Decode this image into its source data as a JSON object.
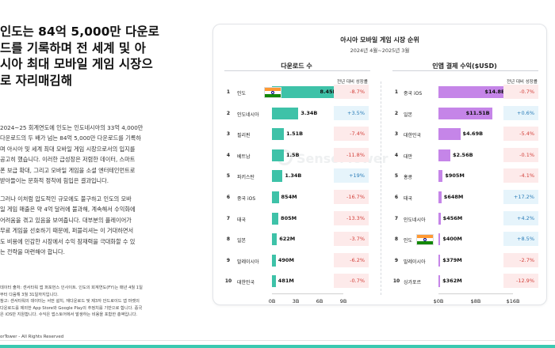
{
  "article": {
    "headline": [
      "인도는 84억 5,000만 다운로",
      "드를 기록하며 전 세계 및 아",
      "시아 최대 모바일 게임 시장으",
      "로 자리매김해"
    ],
    "para1": [
      "2024~25 회계연도에 인도는 인도네시아의 33억 4,000만",
      "다운로드의 두 배가 넘는 84억 5,000만 다운로드를 기록하",
      "며 아시아 및 세계 최대 모바일 게임 시장으로서의 입지를",
      "공고히 했습니다. 이러한 급성장은 저렴한 데이터, 스마트",
      "폰 보급 확대, 그리고 모바일 게임을 소셜 엔터테인먼트로",
      "받아들이는 문화적 정착에 힘입은 결과입니다."
    ],
    "para2": [
      "그러나 이처럼 압도적인 규모에도 불구하고 인도의 모바",
      "일 게임 매출은 약 4억 달러에 불과해, 계속해서 수익화에",
      "어려움을 겪고 있음을 보여줍니다. 대부분의 플레이어가",
      "무료 게임을 선호하기 때문에, 퍼블리셔는 이 거대하면서",
      "도 비용에 민감한 시장에서 수익 잠재력을 극대화할 수 있",
      "는 전략을 마련해야 합니다."
    ],
    "sources": [
      "데이터 출처: 센서타워 앱 퍼포먼스 인사이트. 인도의 회계연도(FY)는 매년 4월 1일",
      "부터 다음해 3월 31일까지입니다.",
      "참고: 센서타워의 데이터는 서먼 설치, 재다운로드 및 제3자 안드로이드 앱 마켓의",
      "다운로드를 제외한 App Store와 Google Play의 추정치를 기반으로 합니다. 중국",
      "은 iOS만 지원합니다. 수익은 앱스토어에서 발생하는 비용을 포함한 총액입니다."
    ],
    "copyright": "orTower - All Rights Reserved"
  },
  "chart_data": {
    "type": "bar",
    "title": "아시아 모바일 게임 시장 순위",
    "subtitle": "2024년 4월~2025년 3월",
    "watermark": "SensorTower",
    "growth_header": "전년 대비 성장률",
    "colors": {
      "downloads": "#3ec2a8",
      "revenue": "#c585e8",
      "negative": "#d3423c",
      "positive": "#2b7cb8"
    },
    "downloads": {
      "title": "다운로드 수",
      "unit": "B",
      "xlim": [
        0,
        9
      ],
      "ticks": [
        "0B",
        "3B",
        "6B",
        "9B"
      ],
      "ranks": [
        1,
        2,
        3,
        4,
        5,
        6,
        7,
        8,
        9,
        10
      ],
      "categories": [
        "인도",
        "인도네시아",
        "필리핀",
        "베트남",
        "파키스탄",
        "중국 iOS",
        "태국",
        "일본",
        "말레이시아",
        "대한민국"
      ],
      "values": [
        8.45,
        3.34,
        1.51,
        1.5,
        1.34,
        0.854,
        0.805,
        0.622,
        0.49,
        0.481
      ],
      "labels": [
        "8.45B",
        "3.34B",
        "1.51B",
        "1.5B",
        "1.34B",
        "854M",
        "805M",
        "622M",
        "490M",
        "481M"
      ],
      "growth": [
        "-8.7%",
        "+3.5%",
        "-7.4%",
        "-11.8%",
        "+19%",
        "-16.7%",
        "-13.3%",
        "-3.7%",
        "-6.2%",
        "-0.7%"
      ],
      "flag_index": 0
    },
    "revenue": {
      "title": "인앱 결제 수익($USD)",
      "xlim": [
        0,
        16
      ],
      "ticks": [
        "$0B",
        "$8B",
        "$16B"
      ],
      "ranks": [
        1,
        2,
        3,
        4,
        5,
        6,
        7,
        8,
        9,
        10
      ],
      "categories": [
        "중국 iOS",
        "일본",
        "대한민국",
        "대만",
        "홍콩",
        "태국",
        "인도네시아",
        "인도",
        "말레이시아",
        "싱가포르"
      ],
      "values": [
        14.8,
        11.51,
        4.69,
        2.56,
        0.905,
        0.648,
        0.456,
        0.4,
        0.379,
        0.362
      ],
      "labels": [
        "$14.8B",
        "$11.51B",
        "$4.69B",
        "$2.56B",
        "$905M",
        "$648M",
        "$456M",
        "$400M",
        "$379M",
        "$362M"
      ],
      "growth": [
        "-0.7%",
        "+0.6%",
        "-5.4%",
        "-0.1%",
        "-4.1%",
        "+17.2%",
        "+4.2%",
        "+8.5%",
        "-2.7%",
        "-12.9%"
      ],
      "flag_index": 7
    }
  }
}
